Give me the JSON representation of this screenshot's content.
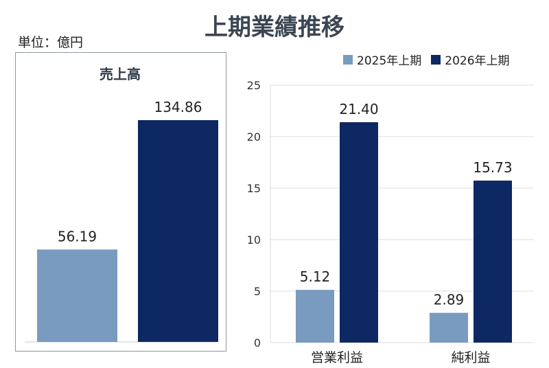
{
  "title": "上期業績推移",
  "unit_label": "単位：億円",
  "legend": [
    {
      "label": "2025年上期",
      "color": "#7a9bc0"
    },
    {
      "label": "2026年上期",
      "color": "#0d2862"
    }
  ],
  "chart_data": [
    {
      "type": "bar",
      "title": "売上高",
      "categories": [
        ""
      ],
      "series": [
        {
          "name": "2025年上期",
          "values": [
            56.19
          ]
        },
        {
          "name": "2026年上期",
          "values": [
            134.86
          ]
        }
      ],
      "data_labels": [
        "56.19",
        "134.86"
      ],
      "colors": [
        "#7a9bc0",
        "#0d2862"
      ]
    },
    {
      "type": "bar",
      "title": "",
      "categories": [
        "営業利益",
        "純利益"
      ],
      "series": [
        {
          "name": "2025年上期",
          "values": [
            5.12,
            2.89
          ]
        },
        {
          "name": "2026年上期",
          "values": [
            21.4,
            15.73
          ]
        }
      ],
      "data_labels": [
        [
          "5.12",
          "2.89"
        ],
        [
          "21.40",
          "15.73"
        ]
      ],
      "ylim": [
        0,
        25
      ],
      "yticks": [
        "0",
        "5",
        "10",
        "15",
        "20",
        "25"
      ],
      "grid": true,
      "legend_position": "top-right",
      "colors": [
        "#7a9bc0",
        "#0d2862"
      ]
    }
  ]
}
